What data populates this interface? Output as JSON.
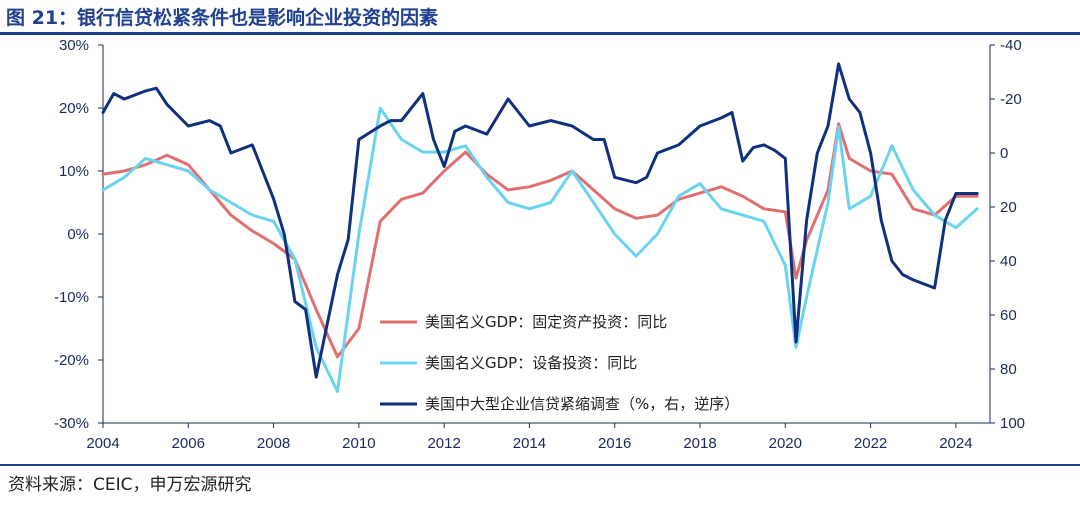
{
  "title": "图 21：银行信贷松紧条件也是影响企业投资的因素",
  "source": "资料来源：CEIC，申万宏源研究",
  "colors": {
    "nominal_gdp": "#e07070",
    "equipment": "#69d3f0",
    "survey": "#0f2f7f",
    "accent": "#1f3f8f"
  },
  "chart_data": {
    "type": "line",
    "title": "",
    "x_ticks": [
      "2004",
      "2006",
      "2008",
      "2010",
      "2012",
      "2014",
      "2016",
      "2018",
      "2020",
      "2022",
      "2024"
    ],
    "xlim": [
      2004.0,
      2024.8
    ],
    "left_axis": {
      "ylim": [
        -30,
        30
      ],
      "ticks": [
        "-30%",
        "-20%",
        "-10%",
        "0%",
        "10%",
        "20%",
        "30%"
      ]
    },
    "right_axis": {
      "ylim": [
        -40,
        100
      ],
      "inverted": true,
      "ticks": [
        "-40",
        "-20",
        "0",
        "20",
        "40",
        "60",
        "80",
        "100"
      ]
    },
    "legend_position": "center",
    "series": [
      {
        "name": "美国名义GDP：固定资产投资：同比",
        "axis": "left",
        "x": [
          2004.0,
          2004.5,
          2005.0,
          2005.5,
          2006.0,
          2006.5,
          2007.0,
          2007.5,
          2008.0,
          2008.5,
          2009.0,
          2009.5,
          2010.0,
          2010.5,
          2011.0,
          2011.5,
          2012.0,
          2012.5,
          2013.0,
          2013.5,
          2014.0,
          2014.5,
          2015.0,
          2015.5,
          2016.0,
          2016.5,
          2017.0,
          2017.5,
          2018.0,
          2018.5,
          2019.0,
          2019.5,
          2020.0,
          2020.25,
          2020.5,
          2021.0,
          2021.25,
          2021.5,
          2022.0,
          2022.5,
          2023.0,
          2023.5,
          2024.0,
          2024.5
        ],
        "y": [
          9.5,
          10.0,
          11.0,
          12.5,
          11.0,
          7.0,
          3.0,
          0.5,
          -1.5,
          -4.0,
          -12.0,
          -19.5,
          -15.0,
          2.0,
          5.5,
          6.5,
          10.0,
          13.0,
          9.5,
          7.0,
          7.5,
          8.5,
          10.0,
          7.0,
          4.0,
          2.5,
          3.0,
          5.5,
          6.5,
          7.5,
          6.0,
          4.0,
          3.5,
          -7.0,
          -1.0,
          7.0,
          17.5,
          12.0,
          10.0,
          9.5,
          4.0,
          3.0,
          6.0,
          6.0
        ]
      },
      {
        "name": "美国名义GDP：设备投资：同比",
        "axis": "left",
        "x": [
          2004.0,
          2004.5,
          2005.0,
          2005.5,
          2006.0,
          2006.5,
          2007.0,
          2007.5,
          2008.0,
          2008.5,
          2009.0,
          2009.5,
          2010.0,
          2010.5,
          2011.0,
          2011.5,
          2012.0,
          2012.5,
          2013.0,
          2013.5,
          2014.0,
          2014.5,
          2015.0,
          2015.5,
          2016.0,
          2016.5,
          2017.0,
          2017.5,
          2018.0,
          2018.5,
          2019.0,
          2019.5,
          2020.0,
          2020.25,
          2020.5,
          2021.0,
          2021.25,
          2021.5,
          2022.0,
          2022.5,
          2023.0,
          2023.5,
          2024.0,
          2024.5
        ],
        "y": [
          7.0,
          9.0,
          12.0,
          11.0,
          10.0,
          7.0,
          5.0,
          3.0,
          2.0,
          -4.0,
          -18.0,
          -25.0,
          0.0,
          20.0,
          15.0,
          13.0,
          13.0,
          14.0,
          9.0,
          5.0,
          4.0,
          5.0,
          10.0,
          5.0,
          0.0,
          -3.5,
          0.0,
          6.0,
          8.0,
          4.0,
          3.0,
          2.0,
          -5.0,
          -18.0,
          -10.0,
          5.0,
          17.0,
          4.0,
          6.0,
          14.0,
          7.0,
          3.0,
          1.0,
          4.0
        ]
      },
      {
        "name": "美国中大型企业信贷紧缩调查（%，右，逆序）",
        "axis": "right",
        "x": [
          2004.0,
          2004.25,
          2004.5,
          2005.0,
          2005.25,
          2005.5,
          2006.0,
          2006.5,
          2006.75,
          2007.0,
          2007.5,
          2008.0,
          2008.25,
          2008.5,
          2008.75,
          2009.0,
          2009.5,
          2009.75,
          2010.0,
          2010.5,
          2010.75,
          2011.0,
          2011.5,
          2011.75,
          2012.0,
          2012.25,
          2012.5,
          2013.0,
          2013.5,
          2014.0,
          2014.5,
          2015.0,
          2015.5,
          2015.75,
          2016.0,
          2016.5,
          2016.75,
          2017.0,
          2017.5,
          2018.0,
          2018.5,
          2018.75,
          2019.0,
          2019.25,
          2019.5,
          2019.75,
          2020.0,
          2020.25,
          2020.5,
          2020.75,
          2021.0,
          2021.25,
          2021.5,
          2021.75,
          2022.0,
          2022.25,
          2022.5,
          2022.75,
          2023.0,
          2023.5,
          2023.75,
          2024.0,
          2024.25,
          2024.5
        ],
        "y": [
          -15,
          -22,
          -20,
          -23,
          -24,
          -18,
          -10,
          -12,
          -10,
          0,
          -3,
          17,
          30,
          55,
          58,
          83,
          45,
          32,
          -5,
          -10,
          -12,
          -12,
          -22,
          -5,
          5,
          -8,
          -10,
          -7,
          -20,
          -10,
          -12,
          -10,
          -5,
          -5,
          9,
          11,
          9,
          0,
          -3,
          -10,
          -13,
          -15,
          3,
          -2,
          -3,
          -1,
          2,
          70,
          25,
          0,
          -10,
          -33,
          -20,
          -15,
          0,
          25,
          40,
          45,
          47,
          50,
          25,
          15,
          15,
          15
        ]
      }
    ]
  }
}
